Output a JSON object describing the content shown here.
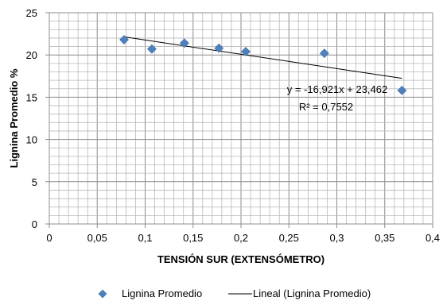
{
  "chart_data": {
    "type": "scatter",
    "title": "",
    "xlabel": "TENSIÓN SUR (EXTENSÓMETRO)",
    "ylabel": "Lignina Promedio %",
    "xlim": [
      0,
      0.4
    ],
    "ylim": [
      0,
      25
    ],
    "x_ticks": [
      0,
      0.05,
      0.1,
      0.15,
      0.2,
      0.25,
      0.3,
      0.35,
      0.4
    ],
    "x_tick_labels": [
      "0",
      "0,05",
      "0,1",
      "0,15",
      "0,2",
      "0,25",
      "0,3",
      "0,35",
      "0,4"
    ],
    "y_ticks": [
      0,
      5,
      10,
      15,
      20,
      25
    ],
    "y_tick_labels": [
      "0",
      "5",
      "10",
      "15",
      "20",
      "25"
    ],
    "grid": true,
    "legend_position": "bottom",
    "series": [
      {
        "name": "Lignina Promedio",
        "marker": "diamond",
        "color": "#4F81BD",
        "x": [
          0.078,
          0.107,
          0.141,
          0.177,
          0.205,
          0.287,
          0.368
        ],
        "y": [
          21.8,
          20.7,
          21.4,
          20.8,
          20.4,
          20.2,
          15.8
        ]
      }
    ],
    "trendline": {
      "name": "Lineal (Lignina Promedio)",
      "color": "#000000",
      "slope": -16.921,
      "intercept": 23.462,
      "x_range": [
        0.078,
        0.368
      ],
      "equation_label": "y = -16,921x + 23,462",
      "r2_label": "R² = 0,7552"
    }
  }
}
